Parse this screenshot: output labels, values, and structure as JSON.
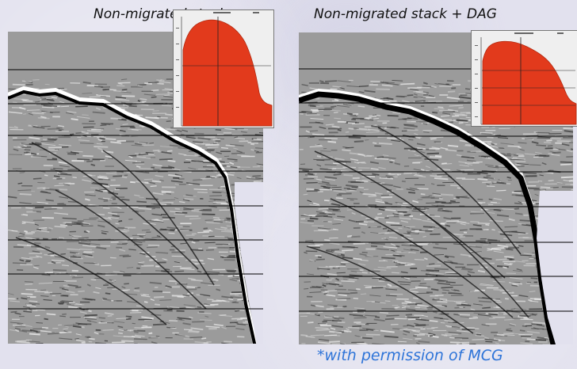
{
  "left_panel": {
    "caption": "Non-migrated stack"
  },
  "right_panel": {
    "caption": "Non-migrated stack  + DAG"
  },
  "credit": "*with permission of MCG",
  "colors": {
    "spectrum_fill": "#e23a1c",
    "credit_text": "#2e74d8",
    "background": "#e2e1ee"
  }
}
